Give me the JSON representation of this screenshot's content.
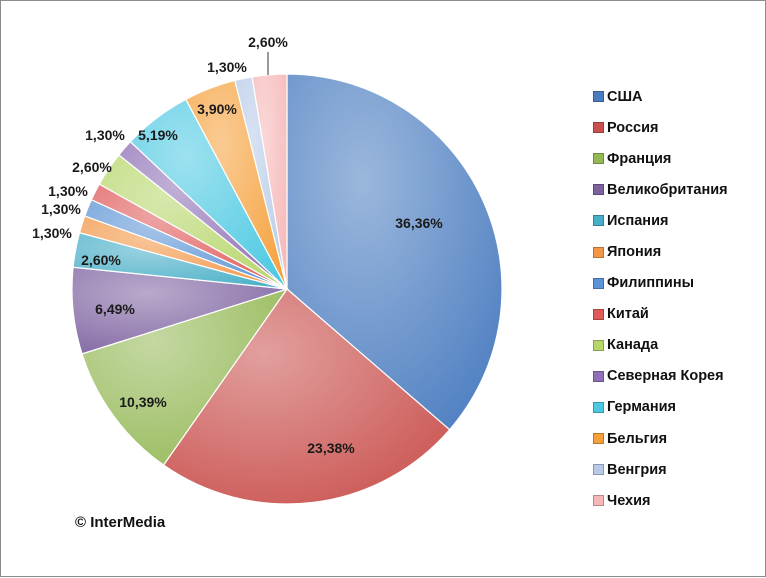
{
  "chart_data": {
    "type": "pie",
    "categories": [
      "США",
      "Россия",
      "Франция",
      "Великобритания",
      "Испания",
      "Япония",
      "Филиппины",
      "Китай",
      "Канада",
      "Северная Корея",
      "Германия",
      "Бельгия",
      "Венгрия",
      "Чехия"
    ],
    "values": [
      36.36,
      23.38,
      10.39,
      6.49,
      2.6,
      1.3,
      1.3,
      1.3,
      2.6,
      1.3,
      5.19,
      3.9,
      1.3,
      2.6
    ],
    "data_labels": [
      "36,36%",
      "23,38%",
      "10,39%",
      "6,49%",
      "2,60%",
      "1,30%",
      "1,30%",
      "1,30%",
      "2,60%",
      "1,30%",
      "5,19%",
      "3,90%",
      "1,30%",
      "2,60%"
    ],
    "colors": [
      "#4a7cc0",
      "#c9504d",
      "#94b855",
      "#7d62a0",
      "#46aec6",
      "#f39646",
      "#5b93d6",
      "#e05a5a",
      "#b6d66a",
      "#8f6fb5",
      "#4cc9e2",
      "#f5a03a",
      "#b7cbe8",
      "#f6b7b7"
    ],
    "legend_position": "right",
    "title": ""
  },
  "copyright": "© InterMedia"
}
